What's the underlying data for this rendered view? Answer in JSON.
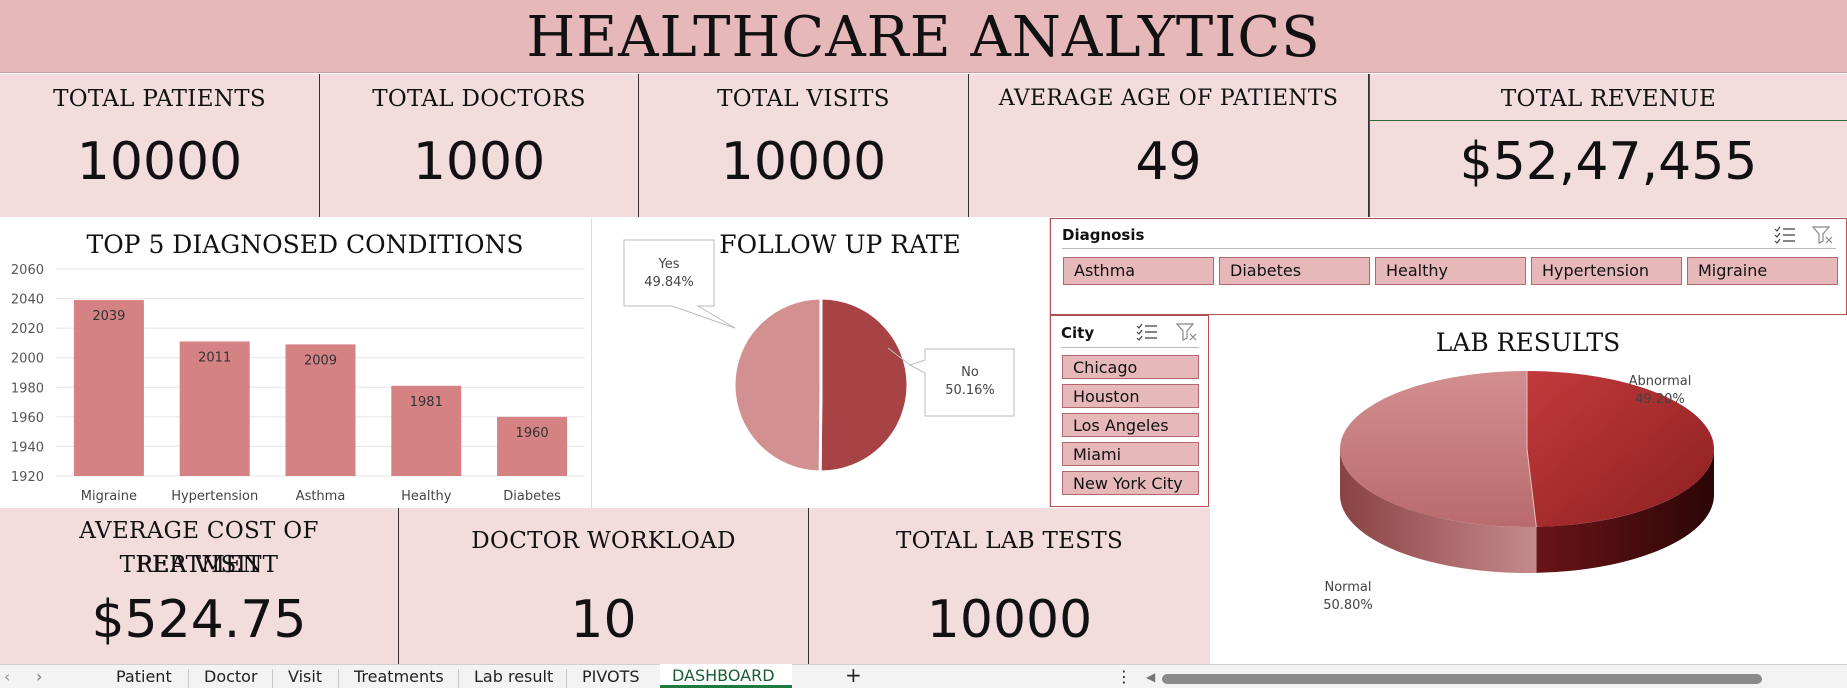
{
  "title": "HEALTHCARE ANALYTICS",
  "kpis": {
    "patients": {
      "label": "TOTAL PATIENTS",
      "value": "10000"
    },
    "doctors": {
      "label": "TOTAL DOCTORS",
      "value": "1000"
    },
    "visits": {
      "label": "TOTAL VISITS",
      "value": "10000"
    },
    "avg_age": {
      "label": "AVERAGE AGE OF PATIENTS",
      "value": "49"
    },
    "revenue": {
      "label": "TOTAL REVENUE",
      "value": "$52,47,455"
    },
    "avg_cost": {
      "label_line1": "AVERAGE COST OF TREATMENT",
      "label_line2": "PER VISIT",
      "value": "$524.75"
    },
    "workload": {
      "label": "DOCTOR WORKLOAD",
      "value": "10"
    },
    "lab_tests": {
      "label": "TOTAL LAB TESTS",
      "value": "10000"
    }
  },
  "slicers": {
    "diagnosis": {
      "title": "Diagnosis",
      "items": [
        "Asthma",
        "Diabetes",
        "Healthy",
        "Hypertension",
        "Migraine"
      ]
    },
    "city": {
      "title": "City",
      "items": [
        "Chicago",
        "Houston",
        "Los Angeles",
        "Miami",
        "New York City"
      ]
    }
  },
  "icons": {
    "multi_select": "multi-select-icon",
    "clear_filter": "clear-filter-icon"
  },
  "colors": {
    "banner": "#e6b8b9",
    "kpi_bg": "#f2dcdc",
    "bar": "#d48283",
    "pie_yes": "#d39090",
    "pie_no": "#a84345",
    "lab_abnormal": "#b73032",
    "lab_normal": "#c67f80"
  },
  "chart_data": [
    {
      "type": "bar",
      "title": "TOP 5 DIAGNOSED CONDITIONS",
      "categories": [
        "Migraine",
        "Hypertension",
        "Asthma",
        "Healthy",
        "Diabetes"
      ],
      "values": [
        2039,
        2011,
        2009,
        1981,
        1960
      ],
      "ylim": [
        1920,
        2060
      ],
      "yticks": [
        "2060",
        "2040",
        "2020",
        "2000",
        "1980",
        "1960",
        "1940",
        "1920"
      ],
      "grid": true,
      "xlabel": "",
      "ylabel": ""
    },
    {
      "type": "pie",
      "title": "FOLLOW UP RATE",
      "labels": [
        "Yes",
        "No"
      ],
      "values": [
        49.84,
        50.16
      ],
      "value_labels": [
        "49.84%",
        "50.16%"
      ]
    },
    {
      "type": "pie",
      "title": "LAB RESULTS",
      "labels": [
        "Abnormal",
        "Normal"
      ],
      "values": [
        49.2,
        50.8
      ],
      "value_labels": [
        "49.20%",
        "50.80%"
      ],
      "style": "3d"
    }
  ],
  "sheet_tabs": {
    "items": [
      "Patient",
      "Doctor",
      "Visit",
      "Treatments",
      "Lab result",
      "PIVOTS",
      "DASHBOARD"
    ],
    "active": "DASHBOARD",
    "add": "+",
    "prev": "‹",
    "next": "›",
    "more": "⋮",
    "scroll_left": "◀"
  }
}
